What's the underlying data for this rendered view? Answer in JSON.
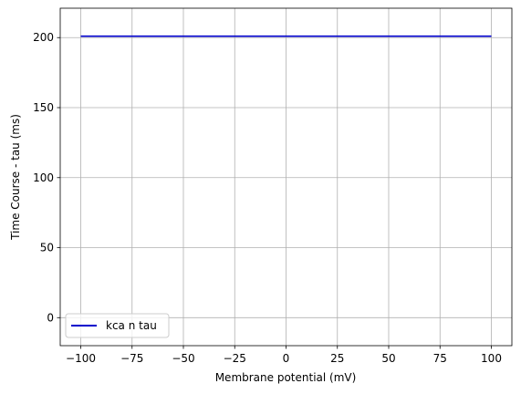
{
  "chart_data": {
    "type": "line",
    "title": "",
    "xlabel": "Membrane potential (mV)",
    "ylabel": "Time Course - tau (ms)",
    "xlim": [
      -110,
      110
    ],
    "ylim": [
      -20,
      221
    ],
    "xticks": [
      -100,
      -75,
      -50,
      -25,
      0,
      25,
      50,
      75,
      100
    ],
    "xtick_labels": [
      "−100",
      "−75",
      "−50",
      "−25",
      "0",
      "25",
      "50",
      "75",
      "100"
    ],
    "yticks": [
      0,
      50,
      100,
      150,
      200
    ],
    "ytick_labels": [
      "0",
      "50",
      "100",
      "150",
      "200"
    ],
    "grid": true,
    "legend_position": "lower-left",
    "series": [
      {
        "name": "kca n tau",
        "color": "#0000cc",
        "x": [
          -100,
          100
        ],
        "y": [
          201,
          201
        ]
      }
    ]
  }
}
